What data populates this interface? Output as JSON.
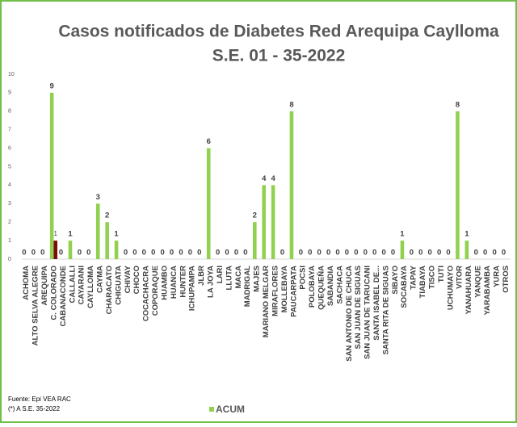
{
  "chart_data": {
    "type": "bar",
    "title": "Casos notificados de Diabetes  Red Arequipa Caylloma",
    "subtitle": "S.E. 01 - 35-2022",
    "categories": [
      "ACHOMA",
      "ALTO SELVA ALEGRE",
      "AREQUIPA",
      "C. COLORADO",
      "CABANACONDE",
      "CALLALLI",
      "CAYARANI",
      "CAYLLOMA",
      "CAYMA",
      "CHARACATO",
      "CHIGUATA",
      "CHIVAY",
      "CHOCO",
      "COCACHACRA",
      "COPORAQUE",
      "HUAMBO",
      "HUANCA",
      "HUNTER",
      "ICHUPAMPA",
      "JLBR",
      "LA JOYA",
      "LARI",
      "LLUTA",
      "MACA",
      "MADRIGAL",
      "MAJES",
      "MARIANO MELGAR",
      "MIRAFLORES",
      "MOLLEBAYA",
      "PAUCARPATA",
      "POCSI",
      "POLOBAYA",
      "QUEQUEÑA",
      "SABANDIA",
      "SACHACA",
      "SAN ANTONIO DE CHUCA",
      "SAN JUAN DE SIGUAS",
      "SAN JUAN DE TARUCANI",
      "SANTA ISABEL DE...",
      "SANTA RITA DE SIGUAS",
      "SIBAYO",
      "SOCABAYA",
      "TAPAY",
      "TIABAYA",
      "TISCO",
      "TUTI",
      "UCHUMAYO",
      "VITOR",
      "YANAHUARA",
      "YANQUE",
      "YARABAMBA",
      "YURA",
      "OTROS"
    ],
    "series": [
      {
        "name": "ACUM",
        "color": "#92d050",
        "values": [
          0,
          0,
          0,
          9,
          0,
          1,
          0,
          0,
          3,
          2,
          1,
          0,
          0,
          0,
          0,
          0,
          0,
          0,
          0,
          0,
          6,
          0,
          0,
          0,
          0,
          2,
          4,
          4,
          0,
          8,
          0,
          0,
          0,
          0,
          0,
          0,
          0,
          0,
          0,
          0,
          0,
          1,
          0,
          0,
          0,
          0,
          0,
          8,
          1,
          0,
          0,
          0,
          0
        ]
      },
      {
        "color": "#7b0c0c",
        "values": [
          0,
          0,
          0,
          1,
          0,
          0,
          0,
          0,
          0,
          0,
          0,
          0,
          0,
          0,
          0,
          0,
          0,
          0,
          0,
          0,
          0,
          0,
          0,
          0,
          0,
          0,
          0,
          0,
          0,
          0,
          0,
          0,
          0,
          0,
          0,
          0,
          0,
          0,
          0,
          0,
          0,
          0,
          0,
          0,
          0,
          0,
          0,
          0,
          0,
          0,
          0,
          0,
          0
        ],
        "value_labels": [
          null,
          null,
          null,
          "1",
          null,
          null,
          null,
          null,
          null,
          null,
          null,
          null,
          null,
          null,
          null,
          null,
          null,
          null,
          null,
          null,
          null,
          null,
          null,
          null,
          null,
          null,
          null,
          null,
          null,
          null,
          null,
          null,
          null,
          null,
          null,
          null,
          null,
          null,
          null,
          null,
          null,
          null,
          null,
          null,
          null,
          null,
          null,
          null,
          null,
          null,
          null,
          null,
          null
        ]
      }
    ],
    "ylim": [
      0,
      10
    ],
    "yticks": [
      0,
      1,
      2,
      3,
      4,
      5,
      6,
      7,
      8,
      9,
      10
    ],
    "grid": false,
    "legend": "bottom",
    "notes": [
      "Fuente: Epi VEA RAC",
      "(*) A S.E. 35-2022"
    ]
  }
}
